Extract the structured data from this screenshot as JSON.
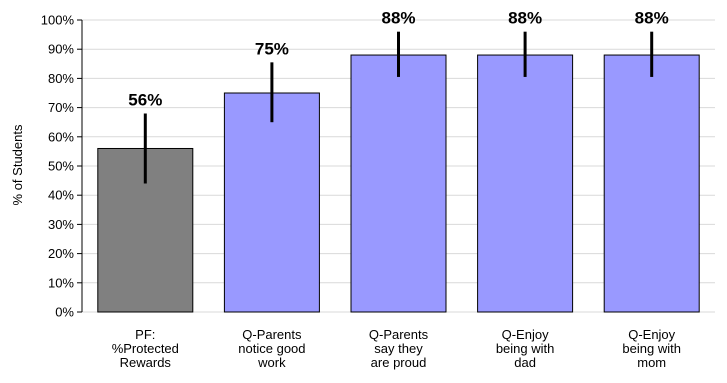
{
  "chart_data": {
    "type": "bar",
    "ylabel": "% of Students",
    "ylim": [
      0,
      100
    ],
    "yticks": [
      0,
      10,
      20,
      30,
      40,
      50,
      60,
      70,
      80,
      90,
      100
    ],
    "ytick_labels": [
      "0%",
      "10%",
      "20%",
      "30%",
      "40%",
      "50%",
      "60%",
      "70%",
      "80%",
      "90%",
      "100%"
    ],
    "grid": true,
    "categories": [
      [
        "PF:",
        "%Protected",
        "Rewards"
      ],
      [
        "Q-Parents",
        "notice good",
        "work"
      ],
      [
        "Q-Parents",
        "say they",
        "are proud"
      ],
      [
        "Q-Enjoy",
        "being with",
        "dad"
      ],
      [
        "Q-Enjoy",
        "being with",
        "mom"
      ]
    ],
    "values": [
      56,
      75,
      88,
      88,
      88
    ],
    "error_low": [
      44,
      65,
      80.5,
      80.5,
      80.5
    ],
    "error_high": [
      68,
      85.5,
      96,
      96,
      96
    ],
    "value_labels": [
      "56%",
      "75%",
      "88%",
      "88%",
      "88%"
    ],
    "colors": [
      "#808080",
      "#9999ff",
      "#9999ff",
      "#9999ff",
      "#9999ff"
    ]
  }
}
